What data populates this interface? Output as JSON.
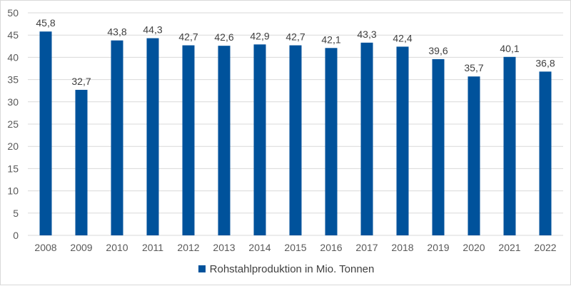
{
  "chart_data": {
    "type": "bar",
    "categories": [
      "2008",
      "2009",
      "2010",
      "2011",
      "2012",
      "2013",
      "2014",
      "2015",
      "2016",
      "2017",
      "2018",
      "2019",
      "2020",
      "2021",
      "2022"
    ],
    "series": [
      {
        "name": "Rohstahlproduktion in Mio. Tonnen",
        "values": [
          45.8,
          32.7,
          43.8,
          44.3,
          42.7,
          42.6,
          42.9,
          42.7,
          42.1,
          43.3,
          42.4,
          39.6,
          35.7,
          40.1,
          36.8
        ],
        "data_labels": [
          "45,8",
          "32,7",
          "43,8",
          "44,3",
          "42,7",
          "42,6",
          "42,9",
          "42,7",
          "42,1",
          "43,3",
          "42,4",
          "39,6",
          "35,7",
          "40,1",
          "36,8"
        ],
        "color": "#00529b"
      }
    ],
    "ylim": [
      0,
      50
    ],
    "yticks": [
      "0",
      "5",
      "10",
      "15",
      "20",
      "25",
      "30",
      "35",
      "40",
      "45",
      "50"
    ],
    "grid": true,
    "gridColor": "#d9d9d9",
    "legend": "bottom"
  }
}
